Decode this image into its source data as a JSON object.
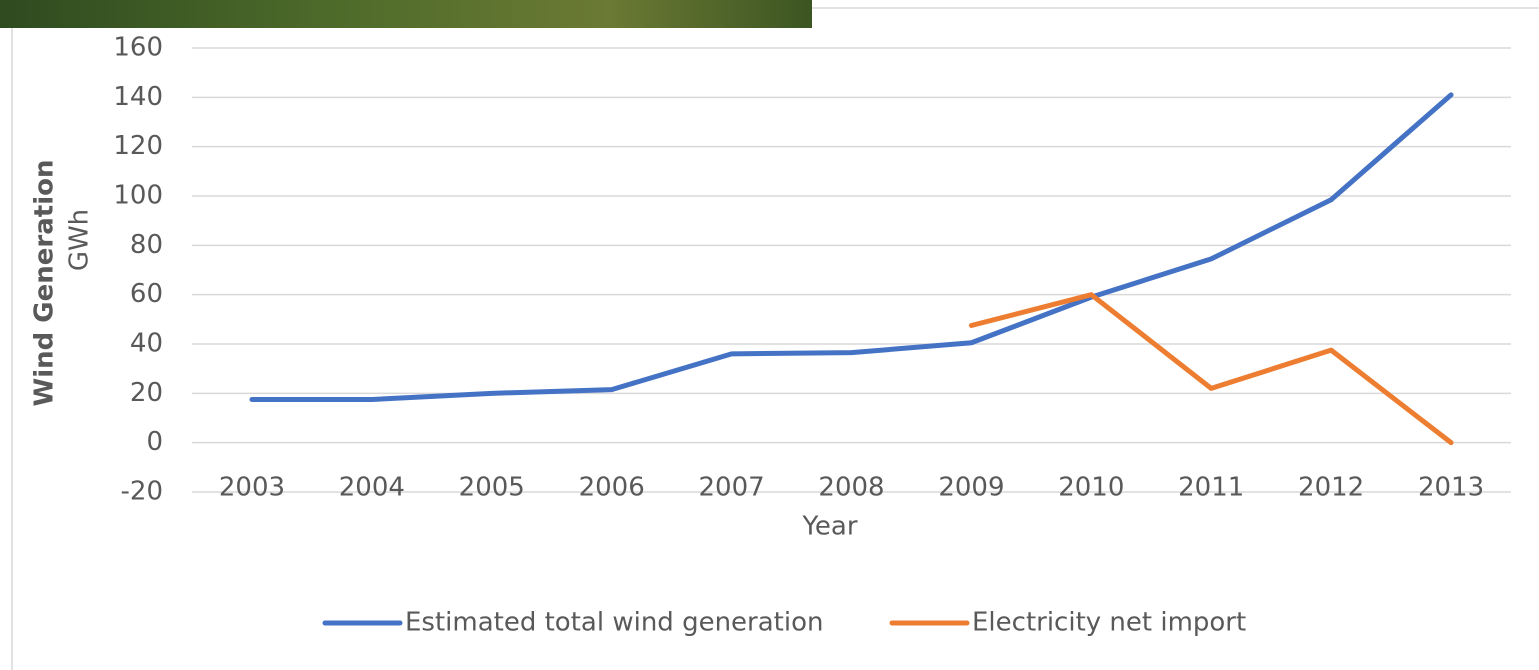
{
  "chart_data": {
    "type": "line",
    "x_label": "Year",
    "y_label": "Wind Generation",
    "y_unit": "GWh",
    "categories": [
      "2003",
      "2004",
      "2005",
      "2006",
      "2007",
      "2008",
      "2009",
      "2010",
      "2011",
      "2012",
      "2013"
    ],
    "series": [
      {
        "name": "Estimated total wind generation",
        "color": "#4472c4",
        "values": [
          17.5,
          17.5,
          20,
          21.5,
          36,
          36.5,
          40.5,
          59,
          74.5,
          98.5,
          141
        ]
      },
      {
        "name": "Electricity net import",
        "color": "#ed7d31",
        "values": [
          null,
          null,
          null,
          null,
          null,
          null,
          47.5,
          60,
          22,
          37.5,
          0
        ]
      }
    ],
    "ylim": [
      -20,
      160
    ],
    "yticks": [
      -20,
      0,
      20,
      40,
      60,
      80,
      100,
      120,
      140,
      160
    ],
    "grid": true
  }
}
